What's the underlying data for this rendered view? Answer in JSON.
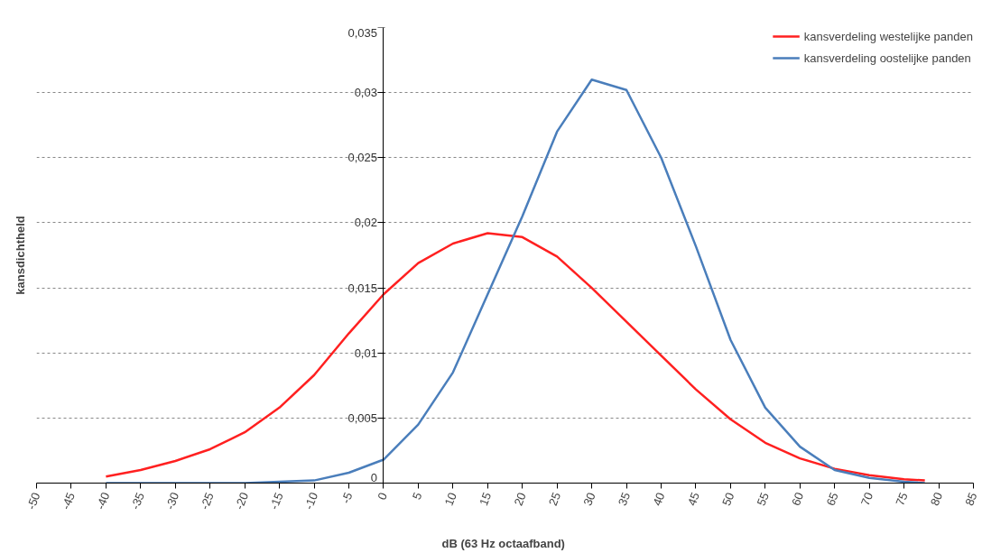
{
  "chart_data": {
    "type": "line",
    "xlabel": "dB  (63 Hz octaafband)",
    "ylabel": "kansdichtheld",
    "xlim": [
      -50,
      85
    ],
    "xticks": [
      -50,
      -45,
      -40,
      -35,
      -30,
      -25,
      -20,
      -15,
      -10,
      -5,
      0,
      5,
      10,
      15,
      20,
      25,
      30,
      35,
      40,
      45,
      50,
      55,
      60,
      65,
      70,
      75,
      80,
      85
    ],
    "ylim": [
      0,
      0.035
    ],
    "yticks": [
      0,
      {
        "value": 0.005,
        "label": "0,005"
      },
      {
        "value": 0.01,
        "label": "0,01"
      },
      {
        "value": 0.015,
        "label": "0,015"
      },
      {
        "value": 0.02,
        "label": "0,02"
      },
      {
        "value": 0.025,
        "label": "0,025"
      },
      {
        "value": 0.03,
        "label": "0,03"
      },
      {
        "value": 0.035,
        "label": "0,035"
      }
    ],
    "grid": "y",
    "legend": "top right",
    "marker": "none",
    "line_style": "solid",
    "series": [
      {
        "name": "kansverdeling westelijke panden",
        "color": "#ff2020",
        "x": [
          -40,
          -35,
          -30,
          -25,
          -20,
          -15,
          -10,
          -5,
          0,
          5,
          10,
          15,
          20,
          25,
          30,
          35,
          40,
          45,
          50,
          55,
          60,
          65,
          70,
          75,
          78
        ],
        "values": [
          0.0005,
          0.001,
          0.0017,
          0.0026,
          0.0039,
          0.0058,
          0.0083,
          0.0115,
          0.0145,
          0.0169,
          0.0184,
          0.0192,
          0.0189,
          0.0174,
          0.015,
          0.0124,
          0.0098,
          0.0072,
          0.0049,
          0.0031,
          0.0019,
          0.0011,
          0.0006,
          0.0003,
          0.0002
        ]
      },
      {
        "name": "kansverdeling oostelijke panden",
        "color": "#4a7ebb",
        "x": [
          -40,
          -35,
          -30,
          -25,
          -20,
          -15,
          -10,
          -5,
          0,
          5,
          10,
          15,
          20,
          25,
          30,
          35,
          40,
          45,
          50,
          55,
          60,
          65,
          70,
          75,
          78
        ],
        "values": [
          0,
          0,
          0,
          0,
          0,
          0.0001,
          0.0002,
          0.0008,
          0.0018,
          0.0045,
          0.0085,
          0.0145,
          0.0205,
          0.027,
          0.031,
          0.0302,
          0.025,
          0.0182,
          0.011,
          0.0058,
          0.0028,
          0.001,
          0.0004,
          0.0001,
          0
        ]
      }
    ]
  }
}
